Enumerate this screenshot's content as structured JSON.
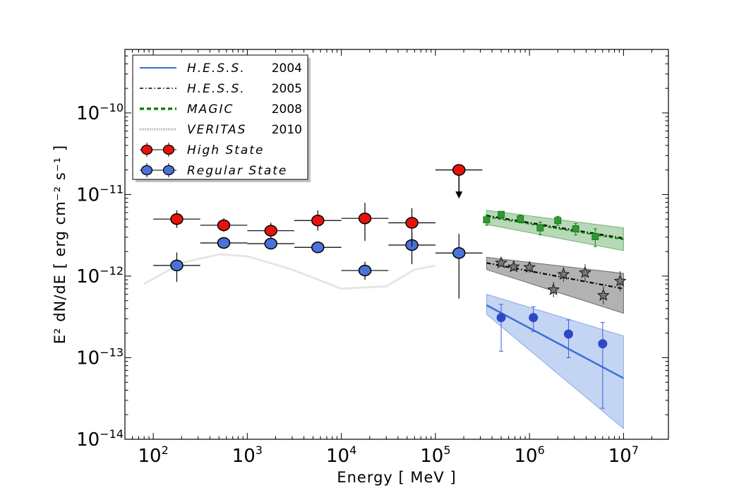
{
  "chart_data": {
    "type": "scatter",
    "xlabel": "Energy [ MeV ]",
    "ylabel": "E² dN/dE [ erg cm⁻² s⁻¹ ]",
    "xscale": "log",
    "yscale": "log",
    "xlim": [
      50,
      30000000
    ],
    "ylim": [
      1e-14,
      6e-10
    ],
    "x_ticks": [
      {
        "value": 100,
        "base": "10",
        "exp": "2"
      },
      {
        "value": 1000,
        "base": "10",
        "exp": "3"
      },
      {
        "value": 10000,
        "base": "10",
        "exp": "4"
      },
      {
        "value": 100000,
        "base": "10",
        "exp": "5"
      },
      {
        "value": 1000000,
        "base": "10",
        "exp": "6"
      },
      {
        "value": 10000000,
        "base": "10",
        "exp": "7"
      }
    ],
    "y_ticks": [
      {
        "value": 1e-10,
        "base": "10",
        "exp": "−10"
      },
      {
        "value": 1e-11,
        "base": "10",
        "exp": "−11"
      },
      {
        "value": 1e-12,
        "base": "10",
        "exp": "−12"
      },
      {
        "value": 1e-13,
        "base": "10",
        "exp": "−13"
      },
      {
        "value": 1e-14,
        "base": "10",
        "exp": "−14"
      }
    ],
    "legend_position": "top-left",
    "legend": [
      {
        "name": "H.E.S.S.",
        "year": "2004",
        "style": "solid",
        "color": "#3a6fd8"
      },
      {
        "name": "H.E.S.S.",
        "year": "2005",
        "style": "dashdot",
        "color": "#000000"
      },
      {
        "name": "MAGIC",
        "year": "2008",
        "style": "dashed",
        "color": "#108010"
      },
      {
        "name": "VERITAS",
        "year": "2010",
        "style": "dotted",
        "color": "#999999"
      },
      {
        "name": "High State",
        "year": "",
        "style": "marker",
        "color": "#e8120c"
      },
      {
        "name": "Regular State",
        "year": "",
        "style": "marker",
        "color": "#4a72d8"
      }
    ],
    "high_state": {
      "color": "#e8120c",
      "points": [
        {
          "x": 178,
          "y": 5e-12,
          "xlo": 100,
          "xhi": 316,
          "ylo": 3.9e-12,
          "yhi": 6.4e-12
        },
        {
          "x": 562,
          "y": 4.2e-12,
          "xlo": 316,
          "xhi": 1000,
          "ylo": 3.5e-12,
          "yhi": 5.1e-12
        },
        {
          "x": 1780,
          "y": 3.6e-12,
          "xlo": 1000,
          "xhi": 3160,
          "ylo": 2.9e-12,
          "yhi": 4.5e-12
        },
        {
          "x": 5620,
          "y": 4.8e-12,
          "xlo": 3160,
          "xhi": 10000,
          "ylo": 3.6e-12,
          "yhi": 6.4e-12
        },
        {
          "x": 17800,
          "y": 5.1e-12,
          "xlo": 10000,
          "xhi": 31600,
          "ylo": 2.7e-12,
          "yhi": 7.9e-12
        },
        {
          "x": 56200,
          "y": 4.5e-12,
          "xlo": 31600,
          "xhi": 100000,
          "ylo": 2.3e-12,
          "yhi": 6.8e-12
        },
        {
          "x": 178000,
          "y": 2e-11,
          "xlo": 100000,
          "xhi": 316000,
          "upper_limit": true,
          "arrow_to": 9.3e-12
        }
      ]
    },
    "regular_state": {
      "color": "#4a72d8",
      "points": [
        {
          "x": 178,
          "y": 1.35e-12,
          "xlo": 100,
          "xhi": 316,
          "ylo": 8.5e-13,
          "yhi": 1.95e-12
        },
        {
          "x": 562,
          "y": 2.55e-12,
          "xlo": 316,
          "xhi": 1000,
          "ylo": 2.35e-12,
          "yhi": 2.75e-12
        },
        {
          "x": 1780,
          "y": 2.5e-12,
          "xlo": 1000,
          "xhi": 3160,
          "ylo": 2.3e-12,
          "yhi": 2.7e-12
        },
        {
          "x": 5620,
          "y": 2.25e-12,
          "xlo": 3160,
          "xhi": 10000,
          "ylo": 2.1e-12,
          "yhi": 2.45e-12
        },
        {
          "x": 17800,
          "y": 1.17e-12,
          "xlo": 10000,
          "xhi": 31600,
          "ylo": 9e-13,
          "yhi": 1.5e-12
        },
        {
          "x": 56200,
          "y": 2.4e-12,
          "xlo": 31600,
          "xhi": 100000,
          "ylo": 1.4e-12,
          "yhi": 3.4e-12
        },
        {
          "x": 178000,
          "y": 1.92e-12,
          "xlo": 100000,
          "xhi": 316000,
          "ylo": 5.3e-13,
          "yhi": 3.3e-12
        }
      ]
    },
    "hess_2004": {
      "color": "#3a6fd8",
      "fit_line": [
        [
          350000,
          4.4e-13
        ],
        [
          10000000,
          5.6e-14
        ]
      ],
      "band_upper": [
        [
          350000,
          6e-13
        ],
        [
          10000000,
          1.85e-13
        ]
      ],
      "band_lower": [
        [
          350000,
          3.4e-13
        ],
        [
          10000000,
          1.35e-14
        ]
      ],
      "points": [
        {
          "x": 500000,
          "y": 3.1e-13,
          "ylo": 1.2e-13,
          "yhi": 4.5e-13
        },
        {
          "x": 1100000,
          "y": 3.1e-13,
          "ylo": 2.1e-13,
          "yhi": 4.2e-13
        },
        {
          "x": 2600000,
          "y": 1.95e-13,
          "ylo": 1e-13,
          "yhi": 2.9e-13
        },
        {
          "x": 6000000,
          "y": 1.48e-13,
          "ylo": 2.4e-14,
          "yhi": 2.7e-13
        }
      ]
    },
    "hess_2005": {
      "color": "#000000",
      "fit_line": [
        [
          350000,
          1.45e-12
        ],
        [
          10000000,
          7e-13
        ]
      ],
      "band_upper": [
        [
          350000,
          1.7e-12
        ],
        [
          10000000,
          1.08e-12
        ]
      ],
      "band_lower": [
        [
          350000,
          1.2e-12
        ],
        [
          10000000,
          3.5e-13
        ]
      ],
      "points": [
        {
          "x": 500000,
          "y": 1.45e-12,
          "ylo": 1.3e-12,
          "yhi": 1.6e-12
        },
        {
          "x": 680000,
          "y": 1.3e-12,
          "ylo": 1.15e-12,
          "yhi": 1.45e-12
        },
        {
          "x": 1000000,
          "y": 1.28e-12,
          "ylo": 1.1e-12,
          "yhi": 1.48e-12
        },
        {
          "x": 1800000,
          "y": 6.8e-13,
          "ylo": 5.5e-13,
          "yhi": 8.5e-13
        },
        {
          "x": 2300000,
          "y": 1.05e-12,
          "ylo": 8.5e-13,
          "yhi": 1.3e-12
        },
        {
          "x": 3900000,
          "y": 1.1e-12,
          "ylo": 8.5e-13,
          "yhi": 1.4e-12
        },
        {
          "x": 6100000,
          "y": 5.8e-13,
          "ylo": 4.5e-13,
          "yhi": 7.5e-13
        },
        {
          "x": 9200000,
          "y": 8.7e-13,
          "ylo": 6.5e-13,
          "yhi": 1.15e-12
        }
      ]
    },
    "magic_2008": {
      "color": "#108010",
      "fit_line": [
        [
          350000,
          5.5e-12
        ],
        [
          10000000,
          2.9e-12
        ]
      ],
      "band_upper": [
        [
          350000,
          6.4e-12
        ],
        [
          10000000,
          3.9e-12
        ]
      ],
      "band_lower": [
        [
          350000,
          4.3e-12
        ],
        [
          10000000,
          2.05e-12
        ]
      ],
      "points": [
        {
          "x": 350000,
          "y": 4.9e-12,
          "ylo": 4.2e-12,
          "yhi": 5.6e-12
        },
        {
          "x": 500000,
          "y": 5.7e-12,
          "ylo": 5.2e-12,
          "yhi": 6.2e-12
        },
        {
          "x": 800000,
          "y": 5e-12,
          "ylo": 4.5e-12,
          "yhi": 5.6e-12
        },
        {
          "x": 1300000,
          "y": 3.9e-12,
          "ylo": 3.2e-12,
          "yhi": 4.6e-12
        },
        {
          "x": 2000000,
          "y": 4.8e-12,
          "ylo": 4.2e-12,
          "yhi": 5.4e-12
        },
        {
          "x": 3100000,
          "y": 3.8e-12,
          "ylo": 3.2e-12,
          "yhi": 4.4e-12
        },
        {
          "x": 5000000,
          "y": 3.05e-12,
          "ylo": 2.3e-12,
          "yhi": 3.8e-12
        }
      ]
    },
    "faint_curve": [
      [
        80,
        8e-13
      ],
      [
        200,
        1.45e-12
      ],
      [
        500,
        1.85e-12
      ],
      [
        1000,
        1.75e-12
      ],
      [
        3000,
        1.2e-12
      ],
      [
        10000,
        7e-13
      ],
      [
        30000,
        7.5e-13
      ],
      [
        60000,
        1.2e-12
      ],
      [
        100000,
        1.35e-12
      ]
    ]
  }
}
